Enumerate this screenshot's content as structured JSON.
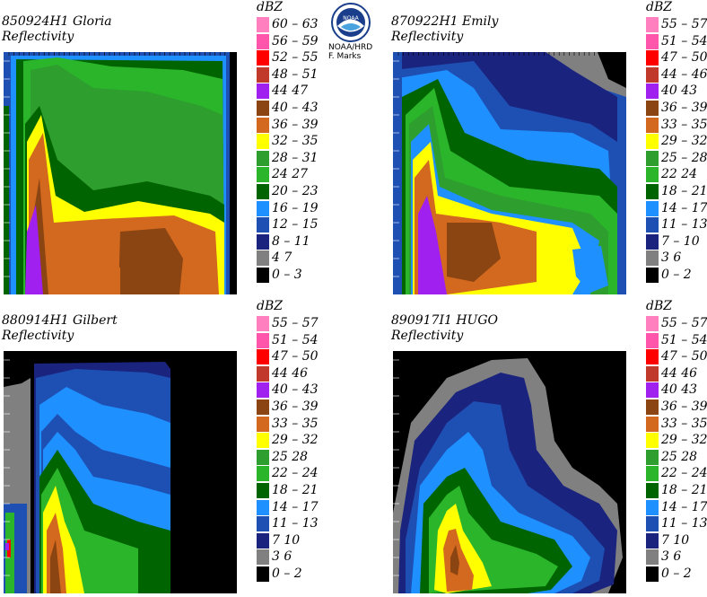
{
  "logo": {
    "org_line1": "NOAA/HRD",
    "org_line2": "F. Marks",
    "emblem_text": "NOAA"
  },
  "chart_data": [
    {
      "type": "heatmap",
      "title": "850924H1 Gloria",
      "subtitle": "Reflectivity",
      "legend_unit": "dBZ",
      "legend": [
        {
          "label": "60 – 63",
          "color": "#ff7fbf"
        },
        {
          "label": "56 – 59",
          "color": "#ff55aa"
        },
        {
          "label": "52 – 55",
          "color": "#ff0000"
        },
        {
          "label": "48 – 51",
          "color": "#c0392b"
        },
        {
          "label": "44   47",
          "color": "#a020f0"
        },
        {
          "label": "40 – 43",
          "color": "#8b4513"
        },
        {
          "label": "36 – 39",
          "color": "#d2691e"
        },
        {
          "label": "32 – 35",
          "color": "#ffff00"
        },
        {
          "label": "28 – 31",
          "color": "#2e9e2e"
        },
        {
          "label": "24   27",
          "color": "#2bb52b"
        },
        {
          "label": "20 – 23",
          "color": "#006400"
        },
        {
          "label": "16 – 19",
          "color": "#1e90ff"
        },
        {
          "label": "12 – 15",
          "color": "#1e50b4"
        },
        {
          "label": "8 – 11",
          "color": "#1a237e"
        },
        {
          "label": "4   7",
          "color": "#808080"
        },
        {
          "label": "0 – 3",
          "color": "#000000"
        }
      ]
    },
    {
      "type": "heatmap",
      "title": "870922H1 Emily",
      "subtitle": "Reflectivity",
      "legend_unit": "dBZ",
      "legend": [
        {
          "label": "55 – 57",
          "color": "#ff7fbf"
        },
        {
          "label": "51 – 54",
          "color": "#ff55aa"
        },
        {
          "label": "47 – 50",
          "color": "#ff0000"
        },
        {
          "label": "44 – 46",
          "color": "#c0392b"
        },
        {
          "label": "40   43",
          "color": "#a020f0"
        },
        {
          "label": "36 – 39",
          "color": "#8b4513"
        },
        {
          "label": "33 – 35",
          "color": "#d2691e"
        },
        {
          "label": "29 – 32",
          "color": "#ffff00"
        },
        {
          "label": "25 – 28",
          "color": "#2e9e2e"
        },
        {
          "label": "22   24",
          "color": "#2bb52b"
        },
        {
          "label": "18 – 21",
          "color": "#006400"
        },
        {
          "label": "14 – 17",
          "color": "#1e90ff"
        },
        {
          "label": "11 – 13",
          "color": "#1e50b4"
        },
        {
          "label": "7 – 10",
          "color": "#1a237e"
        },
        {
          "label": "3   6",
          "color": "#808080"
        },
        {
          "label": "0 – 2",
          "color": "#000000"
        }
      ]
    },
    {
      "type": "heatmap",
      "title": "880914H1 Gilbert",
      "subtitle": "Reflectivity",
      "legend_unit": "dBZ",
      "legend": [
        {
          "label": "55 – 57",
          "color": "#ff7fbf"
        },
        {
          "label": "51 – 54",
          "color": "#ff55aa"
        },
        {
          "label": "47 – 50",
          "color": "#ff0000"
        },
        {
          "label": "44   46",
          "color": "#c0392b"
        },
        {
          "label": "40 – 43",
          "color": "#a020f0"
        },
        {
          "label": "36 – 39",
          "color": "#8b4513"
        },
        {
          "label": "33 – 35",
          "color": "#d2691e"
        },
        {
          "label": "29 – 32",
          "color": "#ffff00"
        },
        {
          "label": "25   28",
          "color": "#2e9e2e"
        },
        {
          "label": "22 – 24",
          "color": "#2bb52b"
        },
        {
          "label": "18 – 21",
          "color": "#006400"
        },
        {
          "label": "14 – 17",
          "color": "#1e90ff"
        },
        {
          "label": "11 – 13",
          "color": "#1e50b4"
        },
        {
          "label": "7   10",
          "color": "#1a237e"
        },
        {
          "label": "3   6",
          "color": "#808080"
        },
        {
          "label": "0 – 2",
          "color": "#000000"
        }
      ]
    },
    {
      "type": "heatmap",
      "title": "890917I1 HUGO",
      "subtitle": "Reflectivity",
      "legend_unit": "dBZ",
      "legend": [
        {
          "label": "55 – 57",
          "color": "#ff7fbf"
        },
        {
          "label": "51 – 54",
          "color": "#ff55aa"
        },
        {
          "label": "47 – 50",
          "color": "#ff0000"
        },
        {
          "label": "44   46",
          "color": "#c0392b"
        },
        {
          "label": "40   43",
          "color": "#a020f0"
        },
        {
          "label": "36 – 39",
          "color": "#8b4513"
        },
        {
          "label": "33 – 35",
          "color": "#d2691e"
        },
        {
          "label": "29 – 32",
          "color": "#ffff00"
        },
        {
          "label": "25   28",
          "color": "#2e9e2e"
        },
        {
          "label": "22 – 24",
          "color": "#2bb52b"
        },
        {
          "label": "18 – 21",
          "color": "#006400"
        },
        {
          "label": "14 – 17",
          "color": "#1e90ff"
        },
        {
          "label": "11 – 13",
          "color": "#1e50b4"
        },
        {
          "label": "7   10",
          "color": "#1a237e"
        },
        {
          "label": "3   6",
          "color": "#808080"
        },
        {
          "label": "0 – 2",
          "color": "#000000"
        }
      ]
    }
  ]
}
